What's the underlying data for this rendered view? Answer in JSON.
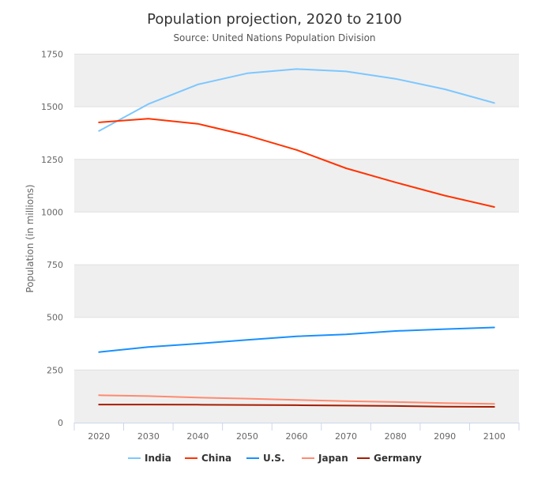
{
  "chart_data": {
    "type": "line",
    "title": "Population projection, 2020 to 2100",
    "subtitle": "Source: United Nations Population Division",
    "xlabel": "",
    "ylabel": "Population (in millions)",
    "categories": [
      "2020",
      "2030",
      "2040",
      "2050",
      "2060",
      "2070",
      "2080",
      "2090",
      "2100"
    ],
    "yticks": [
      0,
      250,
      500,
      750,
      1000,
      1250,
      1500,
      1750
    ],
    "ylim": [
      0,
      1750
    ],
    "grid": "alternating horizontal bands",
    "legend": "bottom-center",
    "series": [
      {
        "name": "India",
        "color": "#7cc7ff",
        "values": [
          1385,
          1513,
          1606,
          1659,
          1679,
          1668,
          1633,
          1583,
          1518
        ]
      },
      {
        "name": "China",
        "color": "#ff3300",
        "values": [
          1426,
          1443,
          1419,
          1364,
          1295,
          1208,
          1141,
          1078,
          1024
        ]
      },
      {
        "name": "U.S.",
        "color": "#1890ff",
        "values": [
          335,
          359,
          375,
          393,
          410,
          419,
          435,
          444,
          452
        ]
      },
      {
        "name": "Japan",
        "color": "#ff8a70",
        "values": [
          130,
          126,
          119,
          114,
          108,
          102,
          98,
          93,
          89
        ]
      },
      {
        "name": "Germany",
        "color": "#a61c00",
        "values": [
          86,
          86,
          85,
          84,
          83,
          81,
          79,
          76,
          75
        ]
      }
    ]
  }
}
